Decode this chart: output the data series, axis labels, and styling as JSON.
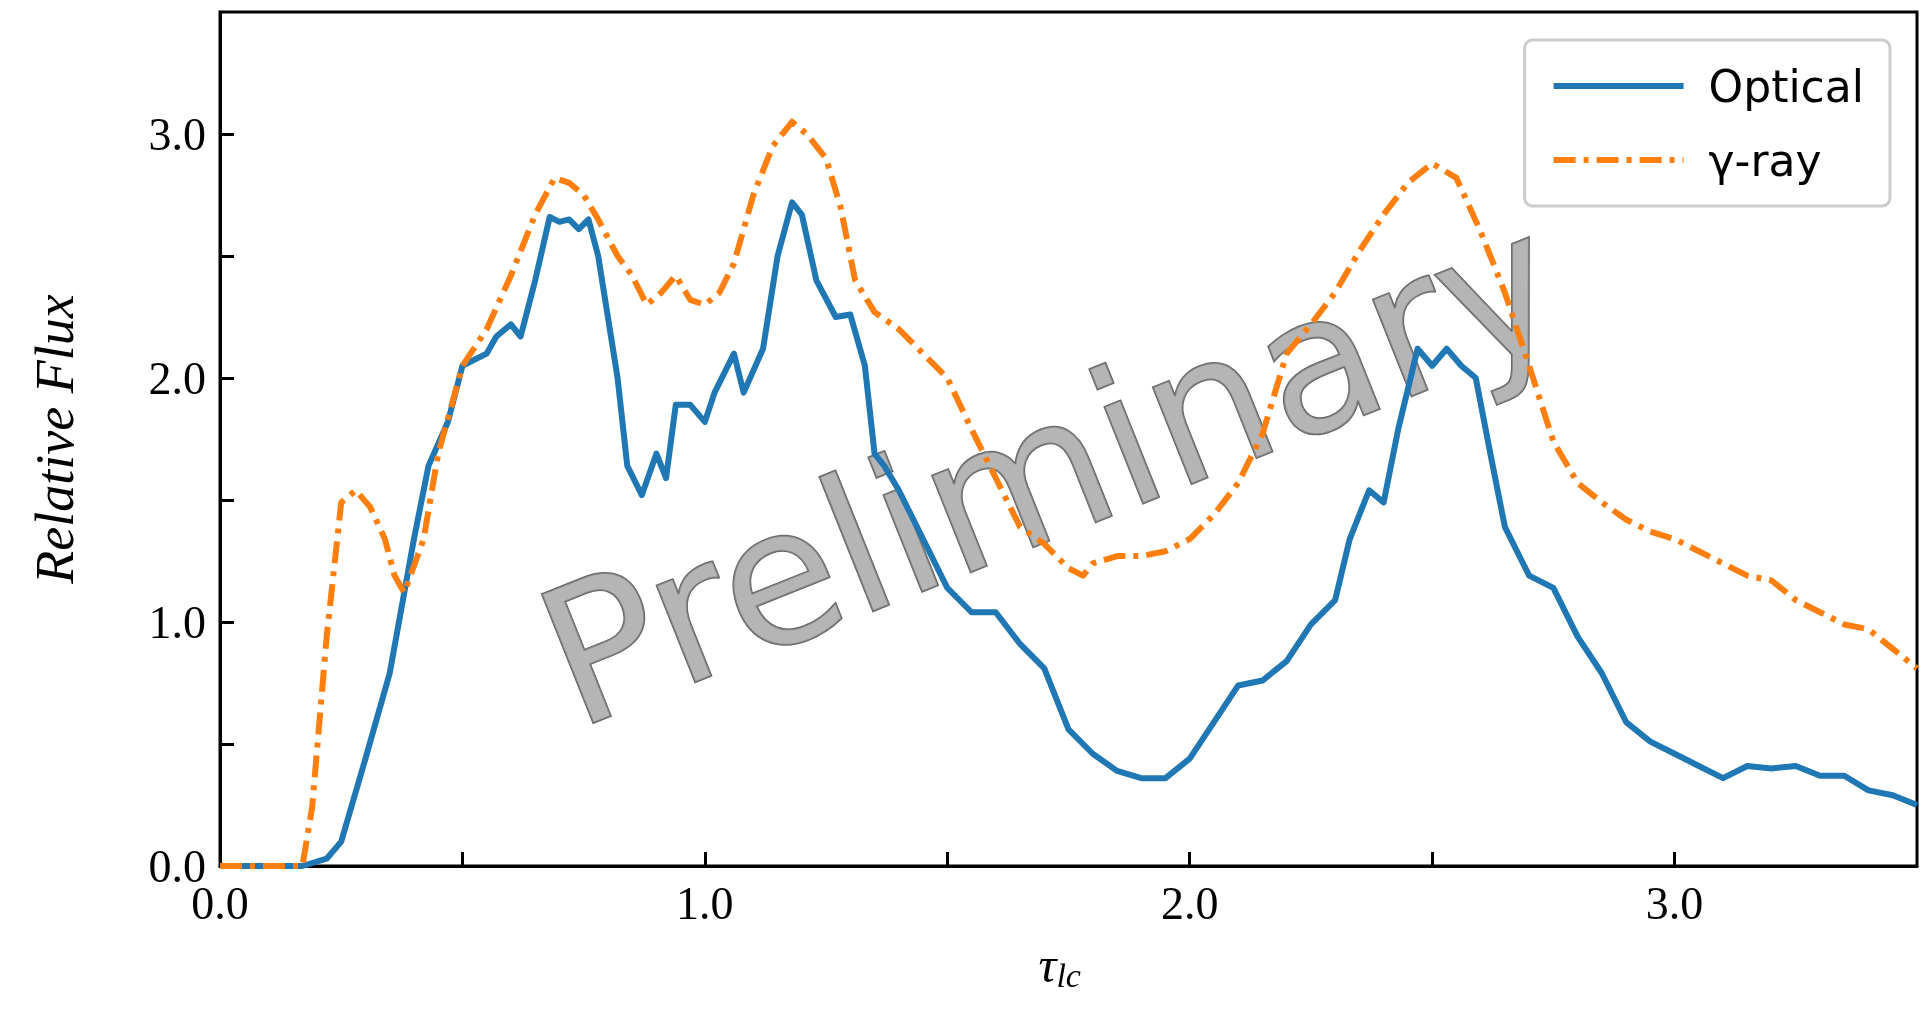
{
  "chart_data": {
    "type": "line",
    "xlabel": "τ$_{lc}$",
    "ylabel": "Relative Flux",
    "annotations": [
      "Preliminary"
    ],
    "xlim": [
      0,
      3.5
    ],
    "ylim": [
      0,
      3.5
    ],
    "xticks": [
      {
        "value": 0,
        "label": "0.0"
      },
      {
        "value": 0.5,
        "label": null
      },
      {
        "value": 1,
        "label": "1.0"
      },
      {
        "value": 1.5,
        "label": null
      },
      {
        "value": 2,
        "label": "2.0"
      },
      {
        "value": 2.5,
        "label": null
      },
      {
        "value": 3,
        "label": "3.0"
      }
    ],
    "yticks": [
      {
        "value": 0,
        "label": "0.0"
      },
      {
        "value": 0.5,
        "label": null
      },
      {
        "value": 1,
        "label": "1.0"
      },
      {
        "value": 1.5,
        "label": null
      },
      {
        "value": 2,
        "label": "2.0"
      },
      {
        "value": 2.5,
        "label": null
      },
      {
        "value": 3,
        "label": "3.0"
      }
    ],
    "grid": false,
    "legend": "top right",
    "marker": "none",
    "series": [
      {
        "name": "Optical",
        "color": "#1f77b4",
        "line_style": "solid",
        "x": [
          0,
          0.17,
          0.22,
          0.25,
          0.3,
          0.35,
          0.4,
          0.43,
          0.47,
          0.5,
          0.55,
          0.57,
          0.6,
          0.62,
          0.65,
          0.68,
          0.7,
          0.72,
          0.74,
          0.76,
          0.78,
          0.8,
          0.82,
          0.84,
          0.87,
          0.9,
          0.92,
          0.94,
          0.97,
          1.0,
          1.02,
          1.06,
          1.08,
          1.12,
          1.15,
          1.18,
          1.2,
          1.23,
          1.27,
          1.3,
          1.33,
          1.35,
          1.37,
          1.4,
          1.45,
          1.5,
          1.55,
          1.6,
          1.65,
          1.7,
          1.75,
          1.8,
          1.85,
          1.9,
          1.95,
          2.0,
          2.05,
          2.1,
          2.15,
          2.2,
          2.25,
          2.3,
          2.33,
          2.37,
          2.4,
          2.43,
          2.47,
          2.5,
          2.53,
          2.56,
          2.59,
          2.62,
          2.65,
          2.7,
          2.75,
          2.8,
          2.85,
          2.9,
          2.95,
          3.0,
          3.05,
          3.1,
          3.15,
          3.2,
          3.25,
          3.3,
          3.35,
          3.4,
          3.45,
          3.5
        ],
        "values": [
          0,
          0,
          0.03,
          0.1,
          0.44,
          0.79,
          1.34,
          1.64,
          1.82,
          2.05,
          2.1,
          2.17,
          2.22,
          2.17,
          2.4,
          2.66,
          2.64,
          2.65,
          2.61,
          2.65,
          2.5,
          2.25,
          2.0,
          1.64,
          1.52,
          1.69,
          1.59,
          1.89,
          1.89,
          1.82,
          1.94,
          2.1,
          1.94,
          2.12,
          2.5,
          2.72,
          2.67,
          2.4,
          2.25,
          2.26,
          2.05,
          1.69,
          1.64,
          1.54,
          1.34,
          1.14,
          1.04,
          1.04,
          0.91,
          0.81,
          0.56,
          0.46,
          0.39,
          0.36,
          0.36,
          0.44,
          0.59,
          0.74,
          0.76,
          0.84,
          0.99,
          1.09,
          1.34,
          1.54,
          1.49,
          1.79,
          2.12,
          2.05,
          2.12,
          2.05,
          2.0,
          1.69,
          1.39,
          1.19,
          1.14,
          0.94,
          0.79,
          0.59,
          0.51,
          0.46,
          0.41,
          0.36,
          0.41,
          0.4,
          0.41,
          0.37,
          0.37,
          0.31,
          0.29,
          0.25
        ]
      },
      {
        "name": "γ-ray",
        "color": "#ff7f0e",
        "line_style": "dashed",
        "x": [
          0,
          0.17,
          0.19,
          0.22,
          0.25,
          0.28,
          0.31,
          0.34,
          0.36,
          0.38,
          0.42,
          0.45,
          0.5,
          0.55,
          0.6,
          0.65,
          0.69,
          0.72,
          0.75,
          0.78,
          0.82,
          0.85,
          0.88,
          0.91,
          0.94,
          0.97,
          1.0,
          1.03,
          1.06,
          1.1,
          1.14,
          1.18,
          1.21,
          1.25,
          1.28,
          1.31,
          1.35,
          1.4,
          1.45,
          1.5,
          1.55,
          1.6,
          1.65,
          1.7,
          1.75,
          1.78,
          1.8,
          1.85,
          1.9,
          1.95,
          2.0,
          2.05,
          2.1,
          2.15,
          2.2,
          2.25,
          2.3,
          2.35,
          2.4,
          2.45,
          2.5,
          2.55,
          2.6,
          2.65,
          2.7,
          2.75,
          2.8,
          2.85,
          2.9,
          2.95,
          3.0,
          3.05,
          3.1,
          3.15,
          3.2,
          3.25,
          3.3,
          3.35,
          3.4,
          3.45,
          3.5
        ],
        "values": [
          0,
          0,
          0.24,
          0.94,
          1.49,
          1.54,
          1.47,
          1.34,
          1.19,
          1.12,
          1.34,
          1.69,
          2.05,
          2.2,
          2.42,
          2.67,
          2.82,
          2.8,
          2.75,
          2.65,
          2.5,
          2.42,
          2.3,
          2.35,
          2.42,
          2.32,
          2.3,
          2.35,
          2.47,
          2.75,
          2.95,
          3.05,
          3.0,
          2.9,
          2.7,
          2.4,
          2.27,
          2.2,
          2.1,
          2.0,
          1.79,
          1.59,
          1.39,
          1.32,
          1.22,
          1.19,
          1.24,
          1.27,
          1.27,
          1.29,
          1.34,
          1.44,
          1.57,
          1.77,
          2.1,
          2.22,
          2.35,
          2.52,
          2.67,
          2.8,
          2.88,
          2.82,
          2.6,
          2.35,
          2.05,
          1.74,
          1.57,
          1.49,
          1.42,
          1.37,
          1.34,
          1.29,
          1.24,
          1.19,
          1.17,
          1.09,
          1.04,
          0.99,
          0.97,
          0.89,
          0.81
        ]
      }
    ]
  }
}
